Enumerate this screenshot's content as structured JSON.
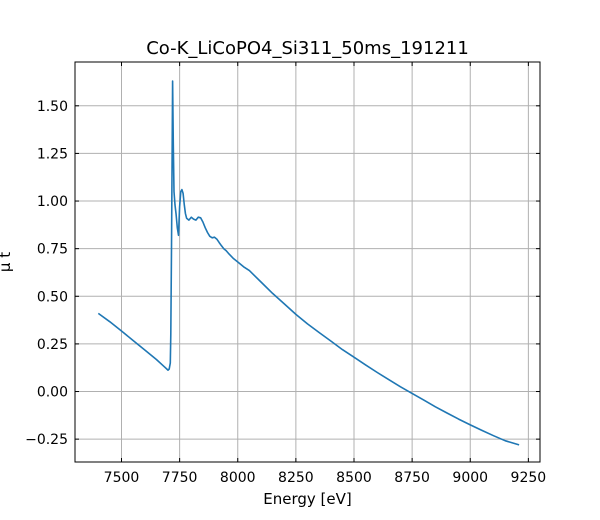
{
  "chart_data": {
    "type": "line",
    "title": "Co-K_LiCoPO4_Si311_50ms_191211",
    "xlabel": "Energy [eV]",
    "ylabel": "μ t",
    "xlim": [
      7300,
      9300
    ],
    "ylim": [
      -0.37,
      1.73
    ],
    "xticks": [
      7500,
      7750,
      8000,
      8250,
      8500,
      8750,
      9000,
      9250
    ],
    "yticks": [
      -0.25,
      0.0,
      0.25,
      0.5,
      0.75,
      1.0,
      1.25,
      1.5
    ],
    "xtick_labels": [
      "7500",
      "7750",
      "8000",
      "8250",
      "8500",
      "8750",
      "9000",
      "9250"
    ],
    "ytick_labels": [
      "−0.25",
      "0.00",
      "0.25",
      "0.50",
      "0.75",
      "1.00",
      "1.25",
      "1.50"
    ],
    "grid": true,
    "series_color": "#1f77b4",
    "series": [
      {
        "x": [
          7400,
          7450,
          7500,
          7550,
          7600,
          7650,
          7680,
          7695,
          7700,
          7705,
          7710,
          7712,
          7715,
          7718,
          7720,
          7723,
          7726,
          7730,
          7735,
          7740,
          7745,
          7750,
          7755,
          7760,
          7765,
          7770,
          7775,
          7780,
          7790,
          7800,
          7810,
          7820,
          7830,
          7840,
          7850,
          7860,
          7870,
          7880,
          7890,
          7900,
          7910,
          7920,
          7930,
          7940,
          7950,
          7960,
          7980,
          8000,
          8025,
          8050,
          8075,
          8100,
          8150,
          8200,
          8250,
          8300,
          8350,
          8400,
          8450,
          8500,
          8550,
          8600,
          8650,
          8700,
          8750,
          8800,
          8850,
          8900,
          8950,
          9000,
          9050,
          9100,
          9150,
          9210
        ],
        "y": [
          0.41,
          0.366,
          0.318,
          0.268,
          0.218,
          0.168,
          0.135,
          0.118,
          0.112,
          0.118,
          0.15,
          0.3,
          0.75,
          1.3,
          1.63,
          1.3,
          1.05,
          0.98,
          0.93,
          0.86,
          0.82,
          0.97,
          1.05,
          1.06,
          1.04,
          0.98,
          0.935,
          0.91,
          0.9,
          0.915,
          0.905,
          0.9,
          0.915,
          0.912,
          0.89,
          0.86,
          0.835,
          0.815,
          0.807,
          0.81,
          0.8,
          0.782,
          0.765,
          0.75,
          0.74,
          0.725,
          0.7,
          0.68,
          0.655,
          0.635,
          0.605,
          0.575,
          0.515,
          0.46,
          0.405,
          0.355,
          0.31,
          0.265,
          0.22,
          0.18,
          0.14,
          0.1,
          0.062,
          0.025,
          -0.01,
          -0.045,
          -0.08,
          -0.113,
          -0.145,
          -0.175,
          -0.204,
          -0.232,
          -0.258,
          -0.28
        ]
      }
    ]
  }
}
